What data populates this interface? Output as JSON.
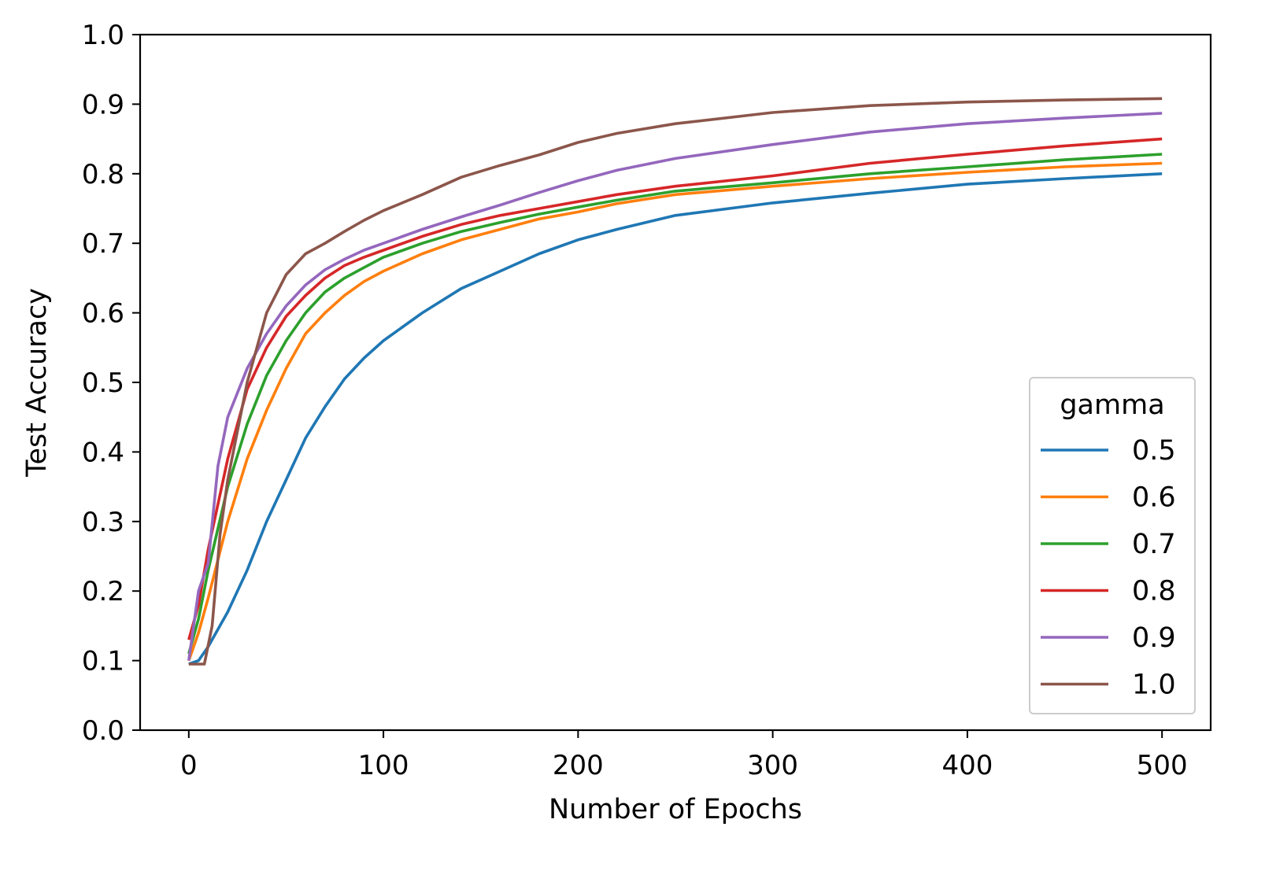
{
  "chart_data": {
    "type": "line",
    "title": "",
    "xlabel": "Number of Epochs",
    "ylabel": "Test Accuracy",
    "xlim": [
      -25,
      525
    ],
    "ylim": [
      0.0,
      1.0
    ],
    "xticks": [
      0,
      100,
      200,
      300,
      400,
      500
    ],
    "yticks": [
      0.0,
      0.1,
      0.2,
      0.3,
      0.4,
      0.5,
      0.6,
      0.7,
      0.8,
      0.9,
      1.0
    ],
    "grid": false,
    "legend": {
      "title": "gamma",
      "placement": "lower-right"
    },
    "series": [
      {
        "name": "0.5",
        "color": "#1f77b4",
        "x": [
          0,
          5,
          10,
          20,
          30,
          40,
          50,
          60,
          70,
          80,
          90,
          100,
          120,
          140,
          160,
          180,
          200,
          220,
          250,
          300,
          350,
          400,
          450,
          500
        ],
        "y": [
          0.095,
          0.1,
          0.12,
          0.17,
          0.23,
          0.3,
          0.36,
          0.42,
          0.465,
          0.505,
          0.535,
          0.56,
          0.6,
          0.635,
          0.66,
          0.685,
          0.705,
          0.72,
          0.74,
          0.758,
          0.772,
          0.785,
          0.793,
          0.8
        ]
      },
      {
        "name": "0.6",
        "color": "#ff7f0e",
        "x": [
          0,
          5,
          10,
          20,
          30,
          40,
          50,
          60,
          70,
          80,
          90,
          100,
          120,
          140,
          160,
          180,
          200,
          220,
          250,
          300,
          350,
          400,
          450,
          500
        ],
        "y": [
          0.1,
          0.14,
          0.19,
          0.3,
          0.39,
          0.46,
          0.52,
          0.57,
          0.6,
          0.625,
          0.645,
          0.66,
          0.685,
          0.705,
          0.72,
          0.735,
          0.745,
          0.757,
          0.77,
          0.782,
          0.793,
          0.802,
          0.81,
          0.815
        ]
      },
      {
        "name": "0.7",
        "color": "#2ca02c",
        "x": [
          0,
          5,
          10,
          20,
          30,
          40,
          50,
          60,
          70,
          80,
          90,
          100,
          120,
          140,
          160,
          180,
          200,
          220,
          250,
          300,
          350,
          400,
          450,
          500
        ],
        "y": [
          0.11,
          0.16,
          0.23,
          0.35,
          0.44,
          0.51,
          0.56,
          0.6,
          0.63,
          0.65,
          0.665,
          0.68,
          0.7,
          0.717,
          0.73,
          0.742,
          0.752,
          0.762,
          0.775,
          0.787,
          0.8,
          0.81,
          0.82,
          0.828
        ]
      },
      {
        "name": "0.8",
        "color": "#d62728",
        "x": [
          0,
          5,
          10,
          20,
          30,
          40,
          50,
          60,
          70,
          80,
          90,
          100,
          120,
          140,
          160,
          180,
          200,
          220,
          250,
          300,
          350,
          400,
          450,
          500
        ],
        "y": [
          0.13,
          0.18,
          0.26,
          0.39,
          0.49,
          0.55,
          0.595,
          0.625,
          0.65,
          0.668,
          0.68,
          0.69,
          0.71,
          0.727,
          0.74,
          0.75,
          0.76,
          0.77,
          0.782,
          0.797,
          0.815,
          0.828,
          0.84,
          0.85
        ]
      },
      {
        "name": "0.9",
        "color": "#9467bd",
        "x": [
          0,
          5,
          10,
          15,
          20,
          30,
          40,
          50,
          60,
          70,
          80,
          90,
          100,
          120,
          140,
          160,
          180,
          200,
          220,
          250,
          300,
          350,
          400,
          450,
          500
        ],
        "y": [
          0.1,
          0.2,
          0.24,
          0.38,
          0.45,
          0.52,
          0.57,
          0.61,
          0.64,
          0.662,
          0.677,
          0.69,
          0.7,
          0.72,
          0.738,
          0.755,
          0.773,
          0.79,
          0.805,
          0.822,
          0.842,
          0.86,
          0.872,
          0.88,
          0.887
        ]
      },
      {
        "name": "1.0",
        "color": "#8c564b",
        "x": [
          0,
          4,
          8,
          12,
          16,
          20,
          30,
          40,
          50,
          60,
          70,
          80,
          90,
          100,
          120,
          140,
          160,
          180,
          200,
          220,
          250,
          300,
          350,
          400,
          450,
          500
        ],
        "y": [
          0.095,
          0.095,
          0.095,
          0.15,
          0.28,
          0.36,
          0.5,
          0.6,
          0.655,
          0.685,
          0.7,
          0.717,
          0.733,
          0.747,
          0.77,
          0.795,
          0.812,
          0.827,
          0.845,
          0.858,
          0.872,
          0.888,
          0.898,
          0.903,
          0.906,
          0.908
        ]
      }
    ]
  }
}
